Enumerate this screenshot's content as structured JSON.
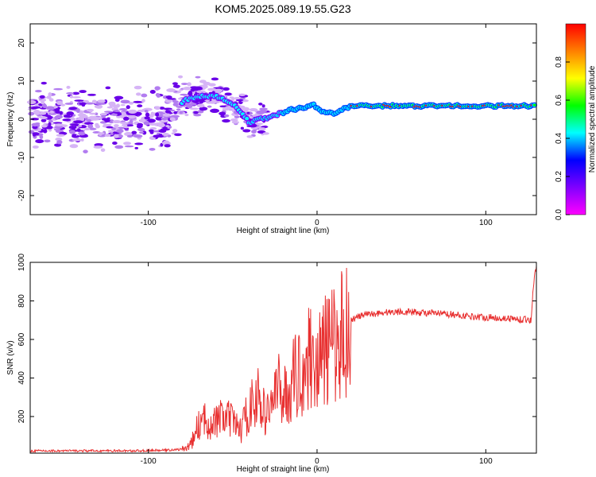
{
  "title": "KOM5.2025.089.19.55.G23",
  "chart_data": [
    {
      "type": "heatmap",
      "xlabel": "Height of straight line (km)",
      "ylabel": "Frequency (Hz)",
      "xlim": [
        -170,
        130
      ],
      "ylim": [
        -25,
        25
      ],
      "xticks": [
        -100,
        0,
        100
      ],
      "yticks": [
        -20,
        -10,
        0,
        10,
        20
      ],
      "colorbar": {
        "label": "Normalized spectral amplitude",
        "range": [
          0,
          1
        ],
        "ticks": [
          0.0,
          0.2,
          0.4,
          0.6,
          0.8
        ],
        "colormap": [
          "#ff00ff",
          "#8000ff",
          "#0000ff",
          "#00ffff",
          "#00ff00",
          "#ffff00",
          "#ff8000",
          "#ff0000"
        ]
      },
      "ridge": [
        {
          "x": -165,
          "y": 0.5
        },
        {
          "x": -150,
          "y": -0.5
        },
        {
          "x": -130,
          "y": 0.5
        },
        {
          "x": -110,
          "y": 0
        },
        {
          "x": -90,
          "y": 0
        },
        {
          "x": -78,
          "y": 5
        },
        {
          "x": -70,
          "y": 6
        },
        {
          "x": -60,
          "y": 6
        },
        {
          "x": -50,
          "y": 4
        },
        {
          "x": -45,
          "y": 2
        },
        {
          "x": -40,
          "y": -1
        },
        {
          "x": -35,
          "y": 0
        },
        {
          "x": -28,
          "y": 0.5
        },
        {
          "x": -22,
          "y": 1.5
        },
        {
          "x": -15,
          "y": 2.5
        },
        {
          "x": -8,
          "y": 3
        },
        {
          "x": -3,
          "y": 4
        },
        {
          "x": 3,
          "y": 2
        },
        {
          "x": 10,
          "y": 1.5
        },
        {
          "x": 20,
          "y": 3.5
        },
        {
          "x": 40,
          "y": 3.5
        },
        {
          "x": 70,
          "y": 3.5
        },
        {
          "x": 100,
          "y": 3.5
        },
        {
          "x": 130,
          "y": 3.5
        }
      ]
    },
    {
      "type": "line",
      "xlabel": "Height of straight line (km)",
      "ylabel": "SNR (v/v)",
      "xlim": [
        -170,
        130
      ],
      "ylim": [
        10,
        1000
      ],
      "xticks": [
        -100,
        0,
        100
      ],
      "yticks": [
        200,
        400,
        600,
        800,
        1000
      ],
      "color": "#e83030",
      "series": [
        {
          "x": [
            -170,
            -150,
            -130,
            -110,
            -90,
            -80,
            -75,
            -70,
            -65,
            -60,
            -55,
            -50,
            -45,
            -40,
            -35,
            -32,
            -30,
            -28,
            -25,
            -22,
            -20,
            -18,
            -15,
            -12,
            -10,
            -8,
            -5,
            -3,
            0,
            3,
            5,
            8,
            10,
            13,
            15,
            18,
            20,
            25,
            30,
            40,
            50,
            60,
            70,
            80,
            90,
            100,
            110,
            120,
            127,
            128,
            129,
            130
          ],
          "y": [
            22,
            22,
            22,
            22,
            25,
            30,
            50,
            160,
            180,
            170,
            200,
            170,
            130,
            250,
            300,
            230,
            200,
            260,
            310,
            350,
            330,
            300,
            380,
            420,
            430,
            440,
            500,
            530,
            470,
            520,
            540,
            560,
            580,
            600,
            640,
            660,
            700,
            720,
            730,
            740,
            745,
            740,
            735,
            730,
            720,
            715,
            710,
            705,
            700,
            850,
            950,
            980
          ]
        }
      ]
    }
  ]
}
